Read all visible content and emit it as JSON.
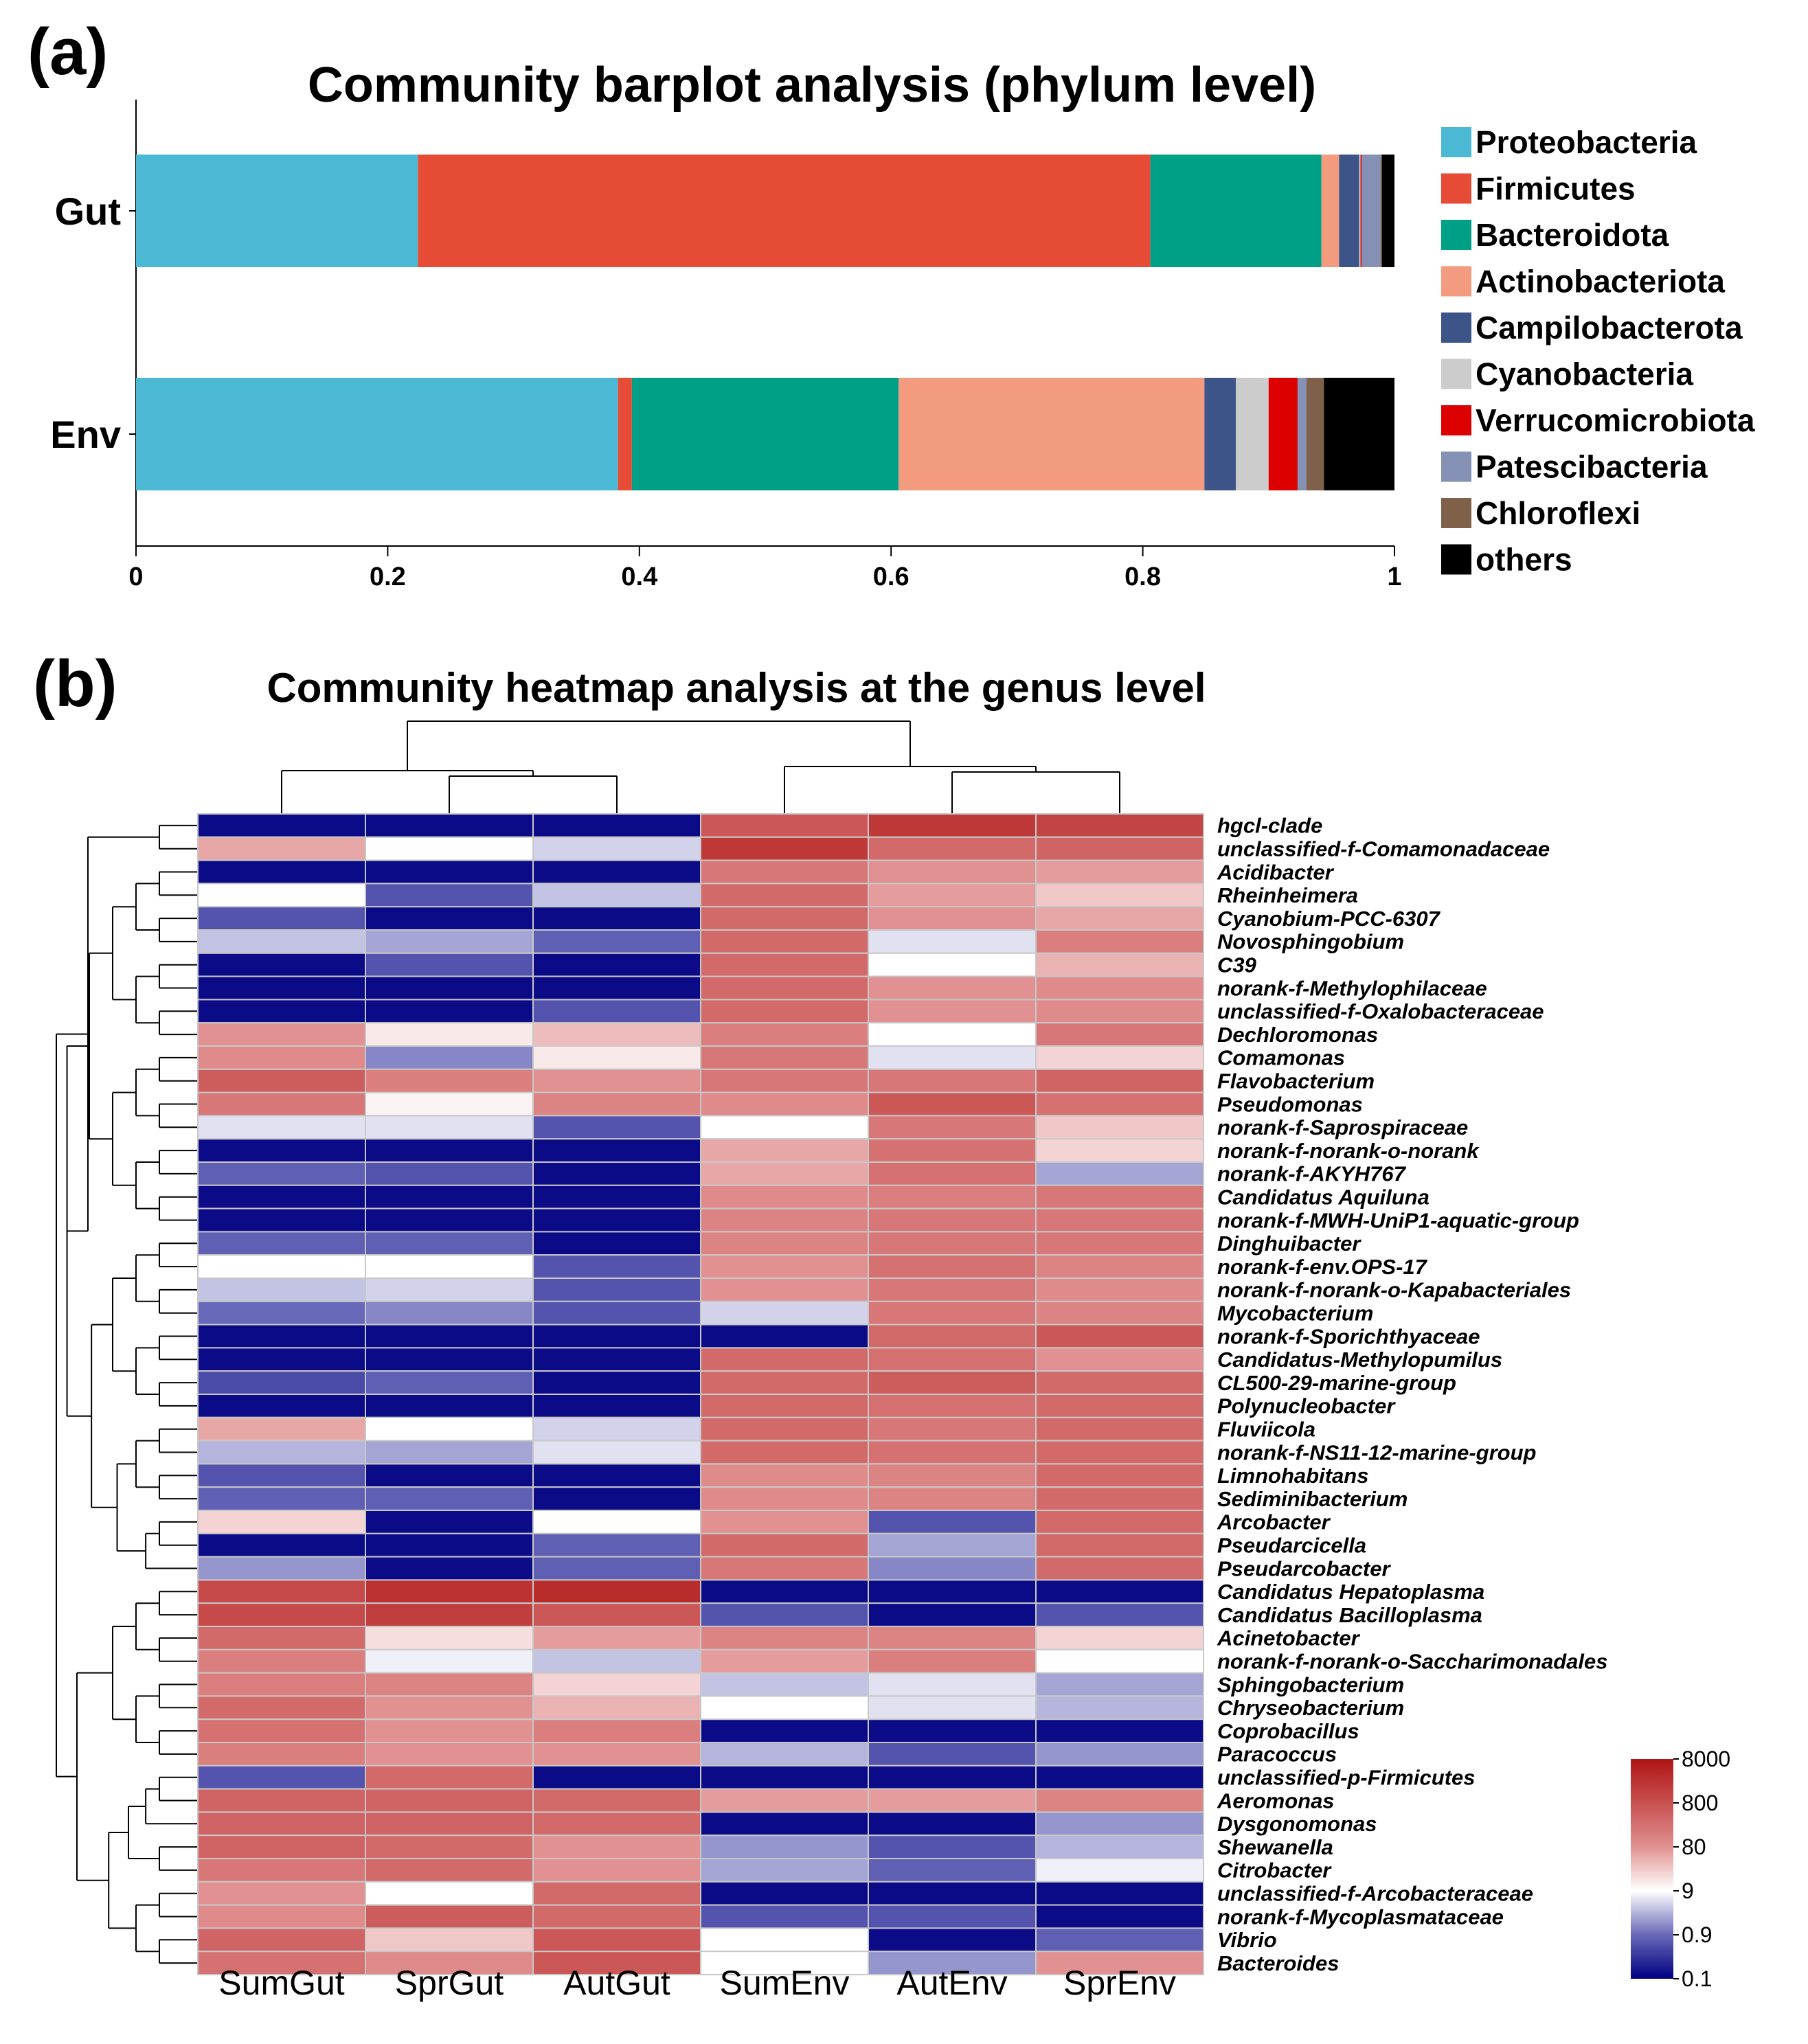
{
  "panel_a_label": "(a)",
  "panel_b_label": "(b)",
  "chart_data": [
    {
      "type": "bar",
      "orientation": "horizontal-stacked",
      "title": "Community barplot analysis (phylum level)",
      "categories": [
        "Gut",
        "Env"
      ],
      "xlim": [
        0,
        1
      ],
      "xticks": [
        "0",
        "0.2",
        "0.4",
        "0.6",
        "0.8",
        "1"
      ],
      "series": [
        {
          "name": "Proteobacteria",
          "color": "#4BB9D3",
          "values": [
            0.224,
            0.383
          ]
        },
        {
          "name": "Firmicutes",
          "color": "#E64B35",
          "values": [
            0.582,
            0.011
          ]
        },
        {
          "name": "Bacteroidota",
          "color": "#00A087",
          "values": [
            0.136,
            0.212
          ]
        },
        {
          "name": "Actinobacteriota",
          "color": "#F39B7F",
          "values": [
            0.014,
            0.243
          ]
        },
        {
          "name": "Campilobacterota",
          "color": "#3C5488",
          "values": [
            0.016,
            0.025
          ]
        },
        {
          "name": "Cyanobacteria",
          "color": "#CCCCCC",
          "values": [
            0.001,
            0.026
          ]
        },
        {
          "name": "Verrucomicrobiota",
          "color": "#DC0000",
          "values": [
            0.001,
            0.023
          ]
        },
        {
          "name": "Patescibacteria",
          "color": "#8491B4",
          "values": [
            0.015,
            0.007
          ]
        },
        {
          "name": "Chloroflexi",
          "color": "#7E6148",
          "values": [
            0.001,
            0.014
          ]
        },
        {
          "name": "others",
          "color": "#000000",
          "values": [
            0.01,
            0.056
          ]
        }
      ]
    },
    {
      "type": "heatmap",
      "title": "Community heatmap analysis at the genus level",
      "columns": [
        "SumGut",
        "SprGut",
        "AutGut",
        "SumEnv",
        "AutEnv",
        "SprEnv"
      ],
      "rows": [
        "hgcl-clade",
        "unclassified-f-Comamonadaceae",
        "Acidibacter",
        "Rheinheimera",
        "Cyanobium-PCC-6307",
        "Novosphingobium",
        "C39",
        "norank-f-Methylophilaceae",
        "unclassified-f-Oxalobacteraceae",
        "Dechloromonas",
        "Comamonas",
        "Flavobacterium",
        "Pseudomonas",
        "norank-f-Saprospiraceae",
        "norank-f-norank-o-norank",
        "norank-f-AKYH767",
        "Candidatus Aquiluna",
        "norank-f-MWH-UniP1-aquatic-group",
        "Dinghuibacter",
        "norank-f-env.OPS-17",
        "norank-f-norank-o-Kapabacteriales",
        "Mycobacterium",
        "norank-f-Sporichthyaceae",
        "Candidatus-Methylopumilus",
        "CL500-29-marine-group",
        "Polynucleobacter",
        "Fluviicola",
        "norank-f-NS11-12-marine-group",
        "Limnohabitans",
        "Sediminibacterium",
        "Arcobacter",
        "Pseudarcicella",
        "Pseudarcobacter",
        "Candidatus Hepatoplasma",
        "Candidatus Bacilloplasma",
        "Acinetobacter",
        "norank-f-norank-o-Saccharimonadales",
        "Sphingobacterium",
        "Chryseobacterium",
        "Coprobacillus",
        "Paracoccus",
        "unclassified-p-Firmicutes",
        "Aeromonas",
        "Dysgonomonas",
        "Shewanella",
        "Citrobacter",
        "unclassified-f-Arcobacteraceae",
        "norank-f-Mycoplasmataceae",
        "Vibrio",
        "Bacteroides"
      ],
      "scale": "log10 abundance (color level 0=0.1 ... 5=8000)",
      "values": [
        [
          0.1,
          0.1,
          0.1,
          3.9,
          4.4,
          4.2
        ],
        [
          2.8,
          2.0,
          1.7,
          4.4,
          3.6,
          3.7
        ],
        [
          0.1,
          0.1,
          0.1,
          3.4,
          3.0,
          2.9
        ],
        [
          2.0,
          0.8,
          1.6,
          3.6,
          2.9,
          2.5
        ],
        [
          0.8,
          0.1,
          0.1,
          3.6,
          3.0,
          2.8
        ],
        [
          1.6,
          1.4,
          0.9,
          3.6,
          1.8,
          3.3
        ],
        [
          0.1,
          0.8,
          0.1,
          3.6,
          2.0,
          2.7
        ],
        [
          0.1,
          0.1,
          0.1,
          3.6,
          3.0,
          3.1
        ],
        [
          0.1,
          0.1,
          0.8,
          3.6,
          3.0,
          3.1
        ],
        [
          3.0,
          2.2,
          2.6,
          3.3,
          2.0,
          3.4
        ],
        [
          3.1,
          1.2,
          2.2,
          3.4,
          1.8,
          2.4
        ],
        [
          3.8,
          3.3,
          3.0,
          3.4,
          3.4,
          3.7
        ],
        [
          3.4,
          2.1,
          3.2,
          3.1,
          3.9,
          3.5
        ],
        [
          1.8,
          1.8,
          0.8,
          2.0,
          3.4,
          2.5
        ],
        [
          0.1,
          0.1,
          0.1,
          2.8,
          3.5,
          2.4
        ],
        [
          0.9,
          0.8,
          0.1,
          2.8,
          3.5,
          1.4
        ],
        [
          0.1,
          0.1,
          0.1,
          3.1,
          3.3,
          3.4
        ],
        [
          0.1,
          0.1,
          0.1,
          3.2,
          3.4,
          3.4
        ],
        [
          0.9,
          0.9,
          0.1,
          3.2,
          3.4,
          3.4
        ],
        [
          2.0,
          2.0,
          0.8,
          3.0,
          3.5,
          3.2
        ],
        [
          1.6,
          1.7,
          0.8,
          3.0,
          3.4,
          3.1
        ],
        [
          1.0,
          1.2,
          0.8,
          1.7,
          3.4,
          3.2
        ],
        [
          0.1,
          0.1,
          0.1,
          0.1,
          3.6,
          3.9
        ],
        [
          0.1,
          0.1,
          0.1,
          3.6,
          3.5,
          3.0
        ],
        [
          0.7,
          0.9,
          0.1,
          3.6,
          3.8,
          3.6
        ],
        [
          0.1,
          0.1,
          0.1,
          3.6,
          3.5,
          3.6
        ],
        [
          2.8,
          2.0,
          1.7,
          3.6,
          3.4,
          3.6
        ],
        [
          1.5,
          1.4,
          1.8,
          3.6,
          3.5,
          3.6
        ],
        [
          0.8,
          0.1,
          0.1,
          3.1,
          3.2,
          3.6
        ],
        [
          0.9,
          0.9,
          0.1,
          3.1,
          3.2,
          3.6
        ],
        [
          2.4,
          0.1,
          2.0,
          3.0,
          0.8,
          3.6
        ],
        [
          0.1,
          0.1,
          0.9,
          3.6,
          1.4,
          3.6
        ],
        [
          1.3,
          0.1,
          0.9,
          3.4,
          1.2,
          3.6
        ],
        [
          4.1,
          4.5,
          4.6,
          0.1,
          0.1,
          0.1
        ],
        [
          4.1,
          4.3,
          3.9,
          0.8,
          0.1,
          0.8
        ],
        [
          3.6,
          2.3,
          2.9,
          3.2,
          3.2,
          2.4
        ],
        [
          3.3,
          1.9,
          1.6,
          2.9,
          3.3,
          2.0
        ],
        [
          3.3,
          3.2,
          2.4,
          1.6,
          1.8,
          1.4
        ],
        [
          3.6,
          3.0,
          2.7,
          2.0,
          1.8,
          1.5
        ],
        [
          3.5,
          3.0,
          3.3,
          0.1,
          0.1,
          0.1
        ],
        [
          3.3,
          3.0,
          3.0,
          1.5,
          0.8,
          1.3
        ],
        [
          0.8,
          3.6,
          0.1,
          0.1,
          0.1,
          0.1
        ],
        [
          3.7,
          3.7,
          3.6,
          2.9,
          2.9,
          3.2
        ],
        [
          3.7,
          3.7,
          3.6,
          0.1,
          0.1,
          1.3
        ],
        [
          3.7,
          3.6,
          3.0,
          1.3,
          0.8,
          1.5
        ],
        [
          3.4,
          3.6,
          3.0,
          1.4,
          0.9,
          1.9
        ],
        [
          3.0,
          2.0,
          3.6,
          0.1,
          0.1,
          0.1
        ],
        [
          3.1,
          3.8,
          3.6,
          0.8,
          0.8,
          0.1
        ],
        [
          3.7,
          2.5,
          3.9,
          2.0,
          0.1,
          0.9
        ],
        [
          3.5,
          3.1,
          3.9,
          2.0,
          1.3,
          3.0
        ]
      ],
      "colorbar_ticks": [
        "8000",
        "800",
        "80",
        "9",
        "0.9",
        "0.1"
      ]
    }
  ]
}
